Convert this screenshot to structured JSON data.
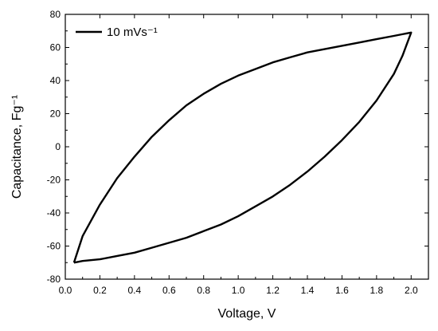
{
  "chart_data": {
    "type": "line",
    "xlabel": "Voltage, V",
    "ylabel": "Capacitance, Fg⁻¹",
    "xlim": [
      0.0,
      2.1
    ],
    "ylim": [
      -80,
      80
    ],
    "xticks": [
      "0.0",
      "0.2",
      "0.4",
      "0.6",
      "0.8",
      "1.0",
      "1.2",
      "1.4",
      "1.6",
      "1.8",
      "2.0"
    ],
    "yticks": [
      "-80",
      "-60",
      "-40",
      "-20",
      "0",
      "20",
      "40",
      "60",
      "80"
    ],
    "grid": false,
    "legend_position": "top-left",
    "series": [
      {
        "name": "10 mVs⁻¹",
        "color": "#000000",
        "x": [
          0.05,
          0.1,
          0.2,
          0.3,
          0.4,
          0.5,
          0.6,
          0.7,
          0.8,
          0.9,
          1.0,
          1.1,
          1.2,
          1.3,
          1.4,
          1.5,
          1.6,
          1.7,
          1.8,
          1.9,
          2.0,
          1.95,
          1.9,
          1.8,
          1.7,
          1.6,
          1.5,
          1.4,
          1.3,
          1.2,
          1.1,
          1.0,
          0.9,
          0.8,
          0.7,
          0.6,
          0.5,
          0.4,
          0.3,
          0.2,
          0.1,
          0.05
        ],
        "y": [
          -70,
          -54,
          -35,
          -19,
          -6,
          6,
          16,
          25,
          32,
          38,
          43,
          47,
          51,
          54,
          57,
          59,
          61,
          63,
          65,
          67,
          69,
          55,
          44,
          28,
          15,
          4,
          -6,
          -15,
          -23,
          -30,
          -36,
          -42,
          -47,
          -51,
          -55,
          -58,
          -61,
          -64,
          -66,
          -68,
          -69,
          -70
        ]
      }
    ]
  }
}
